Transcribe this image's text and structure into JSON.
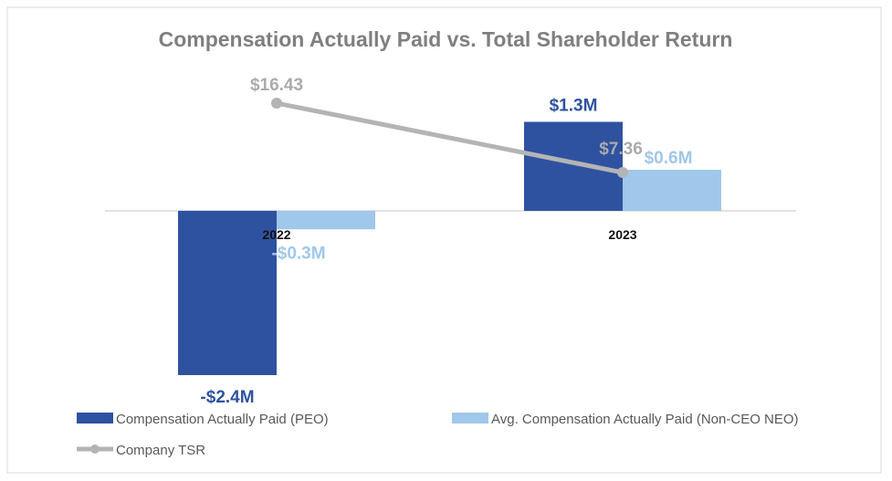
{
  "chart_data": {
    "type": "bar",
    "title": "Compensation Actually Paid vs. Total Shareholder Return",
    "categories": [
      "2022",
      "2023"
    ],
    "series": [
      {
        "name": "Compensation Actually Paid (PEO)",
        "values": [
          -2.4,
          1.3
        ],
        "labels": [
          "-$2.4M",
          "$1.3M"
        ],
        "color": "#2f52a0"
      },
      {
        "name": "Avg. Compensation Actually Paid (Non-CEO NEO)",
        "values": [
          -0.27,
          0.6
        ],
        "labels": [
          "-$0.3M",
          "$0.6M"
        ],
        "color": "#a0c8ea"
      }
    ],
    "line_series": {
      "name": "Company TSR",
      "type": "line",
      "values": [
        16.43,
        7.36
      ],
      "labels": [
        "$16.43",
        "$7.36"
      ],
      "color": "#b4b4b6"
    },
    "xlabel": "",
    "ylabel": "",
    "legend": "bottom",
    "grid": false
  }
}
